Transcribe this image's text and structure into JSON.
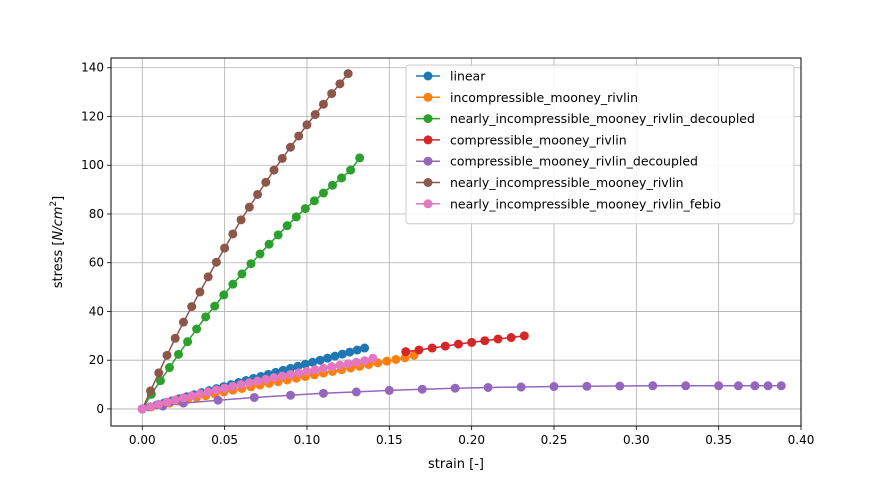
{
  "chart_data": {
    "type": "line",
    "title": "",
    "xlabel": "strain [-]",
    "ylabel_prefix": "stress [",
    "ylabel_unit": "N/cm",
    "ylabel_exp": "2",
    "ylabel_suffix": "]",
    "xlim": [
      -0.019,
      0.4
    ],
    "ylim": [
      -7,
      144
    ],
    "xticks": [
      "0.00",
      "0.05",
      "0.10",
      "0.15",
      "0.20",
      "0.25",
      "0.30",
      "0.35",
      "0.40"
    ],
    "yticks": [
      "0",
      "20",
      "40",
      "60",
      "80",
      "100",
      "120",
      "140"
    ],
    "grid": true,
    "legend_position": "top-right",
    "series": [
      {
        "name": "linear",
        "color": "#1f77b4",
        "x": [
          0,
          0.0045,
          0.009,
          0.0135,
          0.018,
          0.0225,
          0.027,
          0.0315,
          0.036,
          0.0405,
          0.045,
          0.0495,
          0.054,
          0.0585,
          0.063,
          0.0675,
          0.072,
          0.0765,
          0.081,
          0.0855,
          0.09,
          0.0945,
          0.099,
          0.1035,
          0.108,
          0.1125,
          0.117,
          0.1215,
          0.126,
          0.1305,
          0.135
        ],
        "y": [
          0,
          0.83,
          1.67,
          2.5,
          3.33,
          4.17,
          5.0,
          5.83,
          6.67,
          7.5,
          8.33,
          9.17,
          10.0,
          10.83,
          11.67,
          12.5,
          13.33,
          14.17,
          15.0,
          15.83,
          16.67,
          17.5,
          18.33,
          19.17,
          20.0,
          20.83,
          21.67,
          22.5,
          23.33,
          24.17,
          25.0
        ]
      },
      {
        "name": "incompressible_mooney_rivlin",
        "color": "#ff7f0e",
        "x": [
          0,
          0.0055,
          0.011,
          0.0165,
          0.022,
          0.0275,
          0.033,
          0.0385,
          0.044,
          0.0495,
          0.055,
          0.0605,
          0.066,
          0.0715,
          0.077,
          0.0825,
          0.088,
          0.0935,
          0.099,
          0.1045,
          0.11,
          0.1155,
          0.121,
          0.1265,
          0.132,
          0.1375,
          0.143,
          0.1485,
          0.154,
          0.1595,
          0.165
        ],
        "y": [
          0,
          0.8,
          1.6,
          2.4,
          3.2,
          3.95,
          4.7,
          5.45,
          6.2,
          6.95,
          7.7,
          8.4,
          9.1,
          9.8,
          10.5,
          11.2,
          11.9,
          12.6,
          13.3,
          14.0,
          14.7,
          15.4,
          16.1,
          16.8,
          17.5,
          18.2,
          18.9,
          19.6,
          20.3,
          21.0,
          22.0
        ]
      },
      {
        "name": "nearly_incompressible_mooney_rivlin_decoupled",
        "color": "#2ca02c",
        "x": [
          0,
          0.0055,
          0.011,
          0.0165,
          0.022,
          0.0275,
          0.033,
          0.0385,
          0.044,
          0.0495,
          0.055,
          0.0605,
          0.066,
          0.0715,
          0.077,
          0.0825,
          0.088,
          0.0935,
          0.099,
          0.1045,
          0.11,
          0.1155,
          0.121,
          0.1265,
          0.132
        ],
        "y": [
          0,
          6.0,
          11.6,
          17.0,
          22.4,
          27.6,
          32.8,
          37.8,
          42.2,
          46.8,
          51.2,
          55.4,
          59.6,
          63.6,
          67.6,
          71.4,
          75.2,
          78.8,
          82.2,
          85.4,
          88.6,
          91.8,
          94.8,
          98.0,
          103.0
        ]
      },
      {
        "name": "compressible_mooney_rivlin",
        "color": "#d62728",
        "x": [
          0.16,
          0.168,
          0.176,
          0.184,
          0.192,
          0.2,
          0.208,
          0.216,
          0.224,
          0.232
        ],
        "y": [
          23.5,
          24.2,
          25.0,
          25.8,
          26.6,
          27.3,
          28.0,
          28.7,
          29.3,
          30.0
        ]
      },
      {
        "name": "compressible_mooney_rivlin_decoupled",
        "color": "#9467bd",
        "x": [
          0,
          0.0125,
          0.025,
          0.046,
          0.068,
          0.09,
          0.11,
          0.13,
          0.15,
          0.17,
          0.19,
          0.21,
          0.23,
          0.25,
          0.27,
          0.29,
          0.31,
          0.33,
          0.35,
          0.362,
          0.372,
          0.38,
          0.388
        ],
        "y": [
          0,
          1.2,
          2.4,
          3.6,
          4.7,
          5.6,
          6.4,
          7.0,
          7.6,
          8.1,
          8.5,
          8.8,
          9.0,
          9.2,
          9.3,
          9.4,
          9.5,
          9.5,
          9.5,
          9.5,
          9.5,
          9.5,
          9.5
        ]
      },
      {
        "name": "nearly_incompressible_mooney_rivlin",
        "color": "#8c564b",
        "x": [
          0,
          0.005,
          0.01,
          0.015,
          0.02,
          0.025,
          0.03,
          0.035,
          0.04,
          0.045,
          0.05,
          0.055,
          0.06,
          0.065,
          0.07,
          0.075,
          0.08,
          0.085,
          0.09,
          0.095,
          0.1,
          0.105,
          0.11,
          0.115,
          0.12,
          0.125
        ],
        "y": [
          0,
          7.4,
          14.8,
          22.0,
          29.0,
          35.6,
          42.0,
          48.0,
          54.2,
          60.2,
          66.0,
          71.8,
          77.6,
          82.8,
          88.0,
          93.0,
          98.0,
          102.8,
          107.4,
          112.0,
          116.6,
          120.8,
          125.0,
          129.4,
          133.4,
          137.6
        ]
      },
      {
        "name": "nearly_incompressible_mooney_rivlin_febio",
        "color": "#e377c2",
        "x": [
          0,
          0.005,
          0.01,
          0.015,
          0.02,
          0.025,
          0.03,
          0.035,
          0.04,
          0.045,
          0.05,
          0.055,
          0.06,
          0.065,
          0.07,
          0.075,
          0.08,
          0.085,
          0.09,
          0.095,
          0.1,
          0.105,
          0.11,
          0.115,
          0.12,
          0.125,
          0.13,
          0.135,
          0.14
        ],
        "y": [
          0,
          0.95,
          1.9,
          2.8,
          3.7,
          4.55,
          5.4,
          6.2,
          7.0,
          7.8,
          8.55,
          9.3,
          10.05,
          10.75,
          11.45,
          12.15,
          12.85,
          13.5,
          14.15,
          14.8,
          15.45,
          16.1,
          16.7,
          17.35,
          17.95,
          18.55,
          19.15,
          19.75,
          20.8
        ]
      }
    ]
  }
}
